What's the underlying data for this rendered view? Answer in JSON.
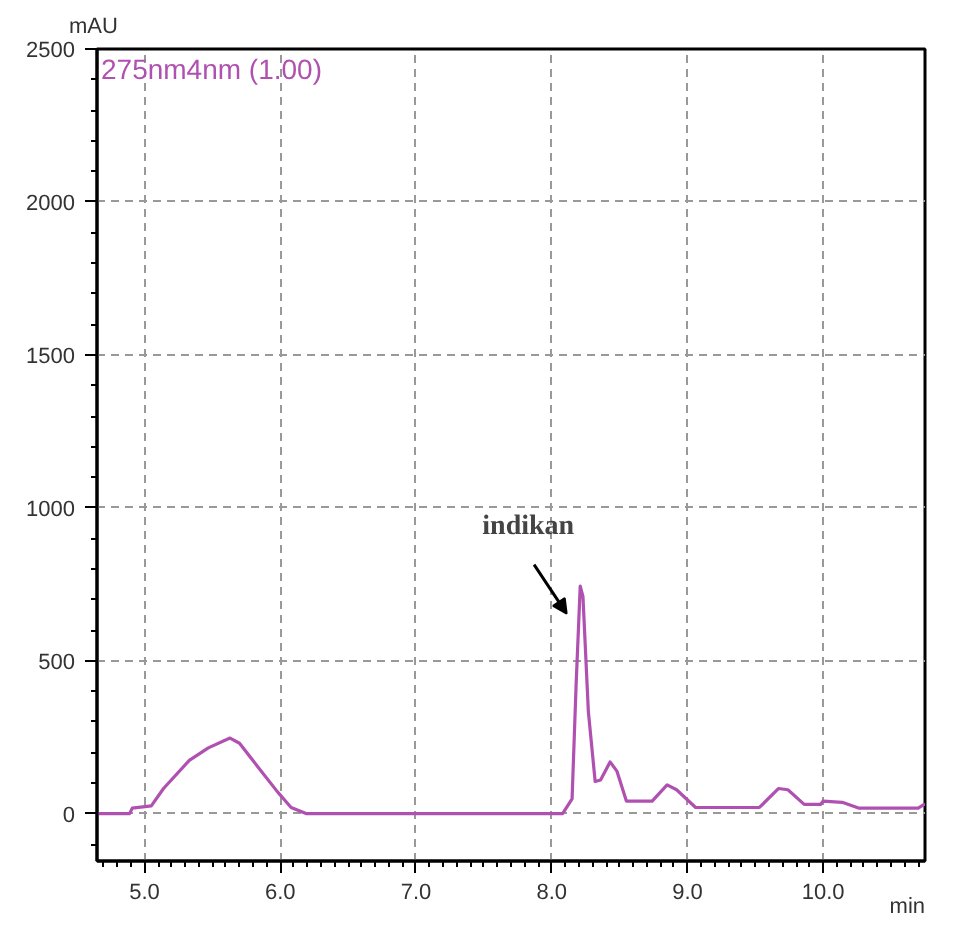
{
  "chart_data": {
    "type": "line",
    "xlabel": "min",
    "ylabel": "mAU",
    "series": [
      {
        "name": "275nm4nm (1.00)",
        "color": "#b050b0",
        "x": [
          4.65,
          4.89,
          4.91,
          5.05,
          5.14,
          5.33,
          5.47,
          5.63,
          5.7,
          5.84,
          5.98,
          6.08,
          6.19,
          8.08,
          8.15,
          8.18,
          8.21,
          8.23,
          8.27,
          8.32,
          8.36,
          8.43,
          8.48,
          8.55,
          8.74,
          8.85,
          8.92,
          9.06,
          9.53,
          9.67,
          9.74,
          9.86,
          9.98,
          10.0,
          10.14,
          10.26,
          10.7,
          10.75
        ],
        "values": [
          0,
          0,
          18,
          25,
          82,
          174,
          215,
          247,
          230,
          150,
          71,
          20,
          0,
          0,
          48,
          425,
          744,
          710,
          333,
          105,
          110,
          169,
          139,
          41,
          41,
          94,
          78,
          20,
          20,
          82,
          78,
          30,
          30,
          41,
          37,
          18,
          18,
          32
        ]
      }
    ],
    "annotations": [
      {
        "text": "indikan",
        "x": 8.21,
        "y": 744
      }
    ],
    "xlim": [
      4.65,
      10.75
    ],
    "ylim": [
      -155,
      2500
    ],
    "xticks": [
      {
        "value": 5,
        "label": "5.0"
      },
      {
        "value": 6,
        "label": "6.0"
      },
      {
        "value": 7,
        "label": "7.0"
      },
      {
        "value": 8,
        "label": "8.0"
      },
      {
        "value": 9,
        "label": "9.0"
      },
      {
        "value": 10,
        "label": "10.0"
      }
    ],
    "yticks": [
      0,
      500,
      1000,
      1500,
      2000,
      2500
    ],
    "grid": true,
    "legend": "top left",
    "marker": "none",
    "line_style": "solid"
  }
}
